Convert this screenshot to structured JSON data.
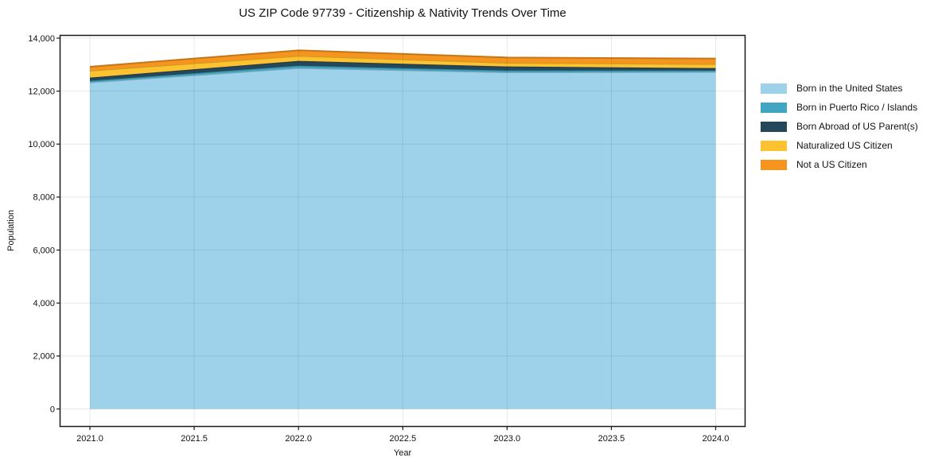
{
  "chart_data": {
    "type": "area",
    "stacked": true,
    "title": "US ZIP Code 97739 - Citizenship & Nativity Trends Over Time",
    "xlabel": "Year",
    "ylabel": "Population",
    "x": [
      2021,
      2022,
      2023,
      2024
    ],
    "series": [
      {
        "name": "Born in the United States",
        "color": "#9ED2EA",
        "values": [
          12330,
          12870,
          12710,
          12720
        ]
      },
      {
        "name": "Born in Puerto Rico / Islands",
        "color": "#41A6C2",
        "values": [
          60,
          90,
          70,
          60
        ]
      },
      {
        "name": "Born Abroad of US Parent(s)",
        "color": "#25475A",
        "values": [
          120,
          180,
          150,
          90
        ]
      },
      {
        "name": "Naturalized US Citizen",
        "color": "#FCC230",
        "values": [
          260,
          190,
          140,
          150
        ]
      },
      {
        "name": "Not a US Citizen",
        "color": "#F5941E",
        "values": [
          150,
          210,
          200,
          210
        ]
      }
    ],
    "xticks": [
      2021.0,
      2021.5,
      2022.0,
      2022.5,
      2023.0,
      2023.5,
      2024.0
    ],
    "xtick_labels": [
      "2021.0",
      "2021.5",
      "2022.0",
      "2022.5",
      "2023.0",
      "2023.5",
      "2024.0"
    ],
    "yticks": [
      0,
      2000,
      4000,
      6000,
      8000,
      10000,
      12000,
      14000
    ],
    "ytick_labels": [
      "0",
      "2,000",
      "4,000",
      "6,000",
      "8,000",
      "10,000",
      "12,000",
      "14,000"
    ],
    "xlim": [
      2020.85,
      2024.15
    ],
    "ylim": [
      -700,
      14130
    ],
    "grid": true,
    "legend_position": "right-outside",
    "colors": {
      "spine": "#1a1a1a",
      "tick_label": "#111111",
      "grid": "rgba(0,0,0,0.09)",
      "background": "#ffffff"
    }
  }
}
